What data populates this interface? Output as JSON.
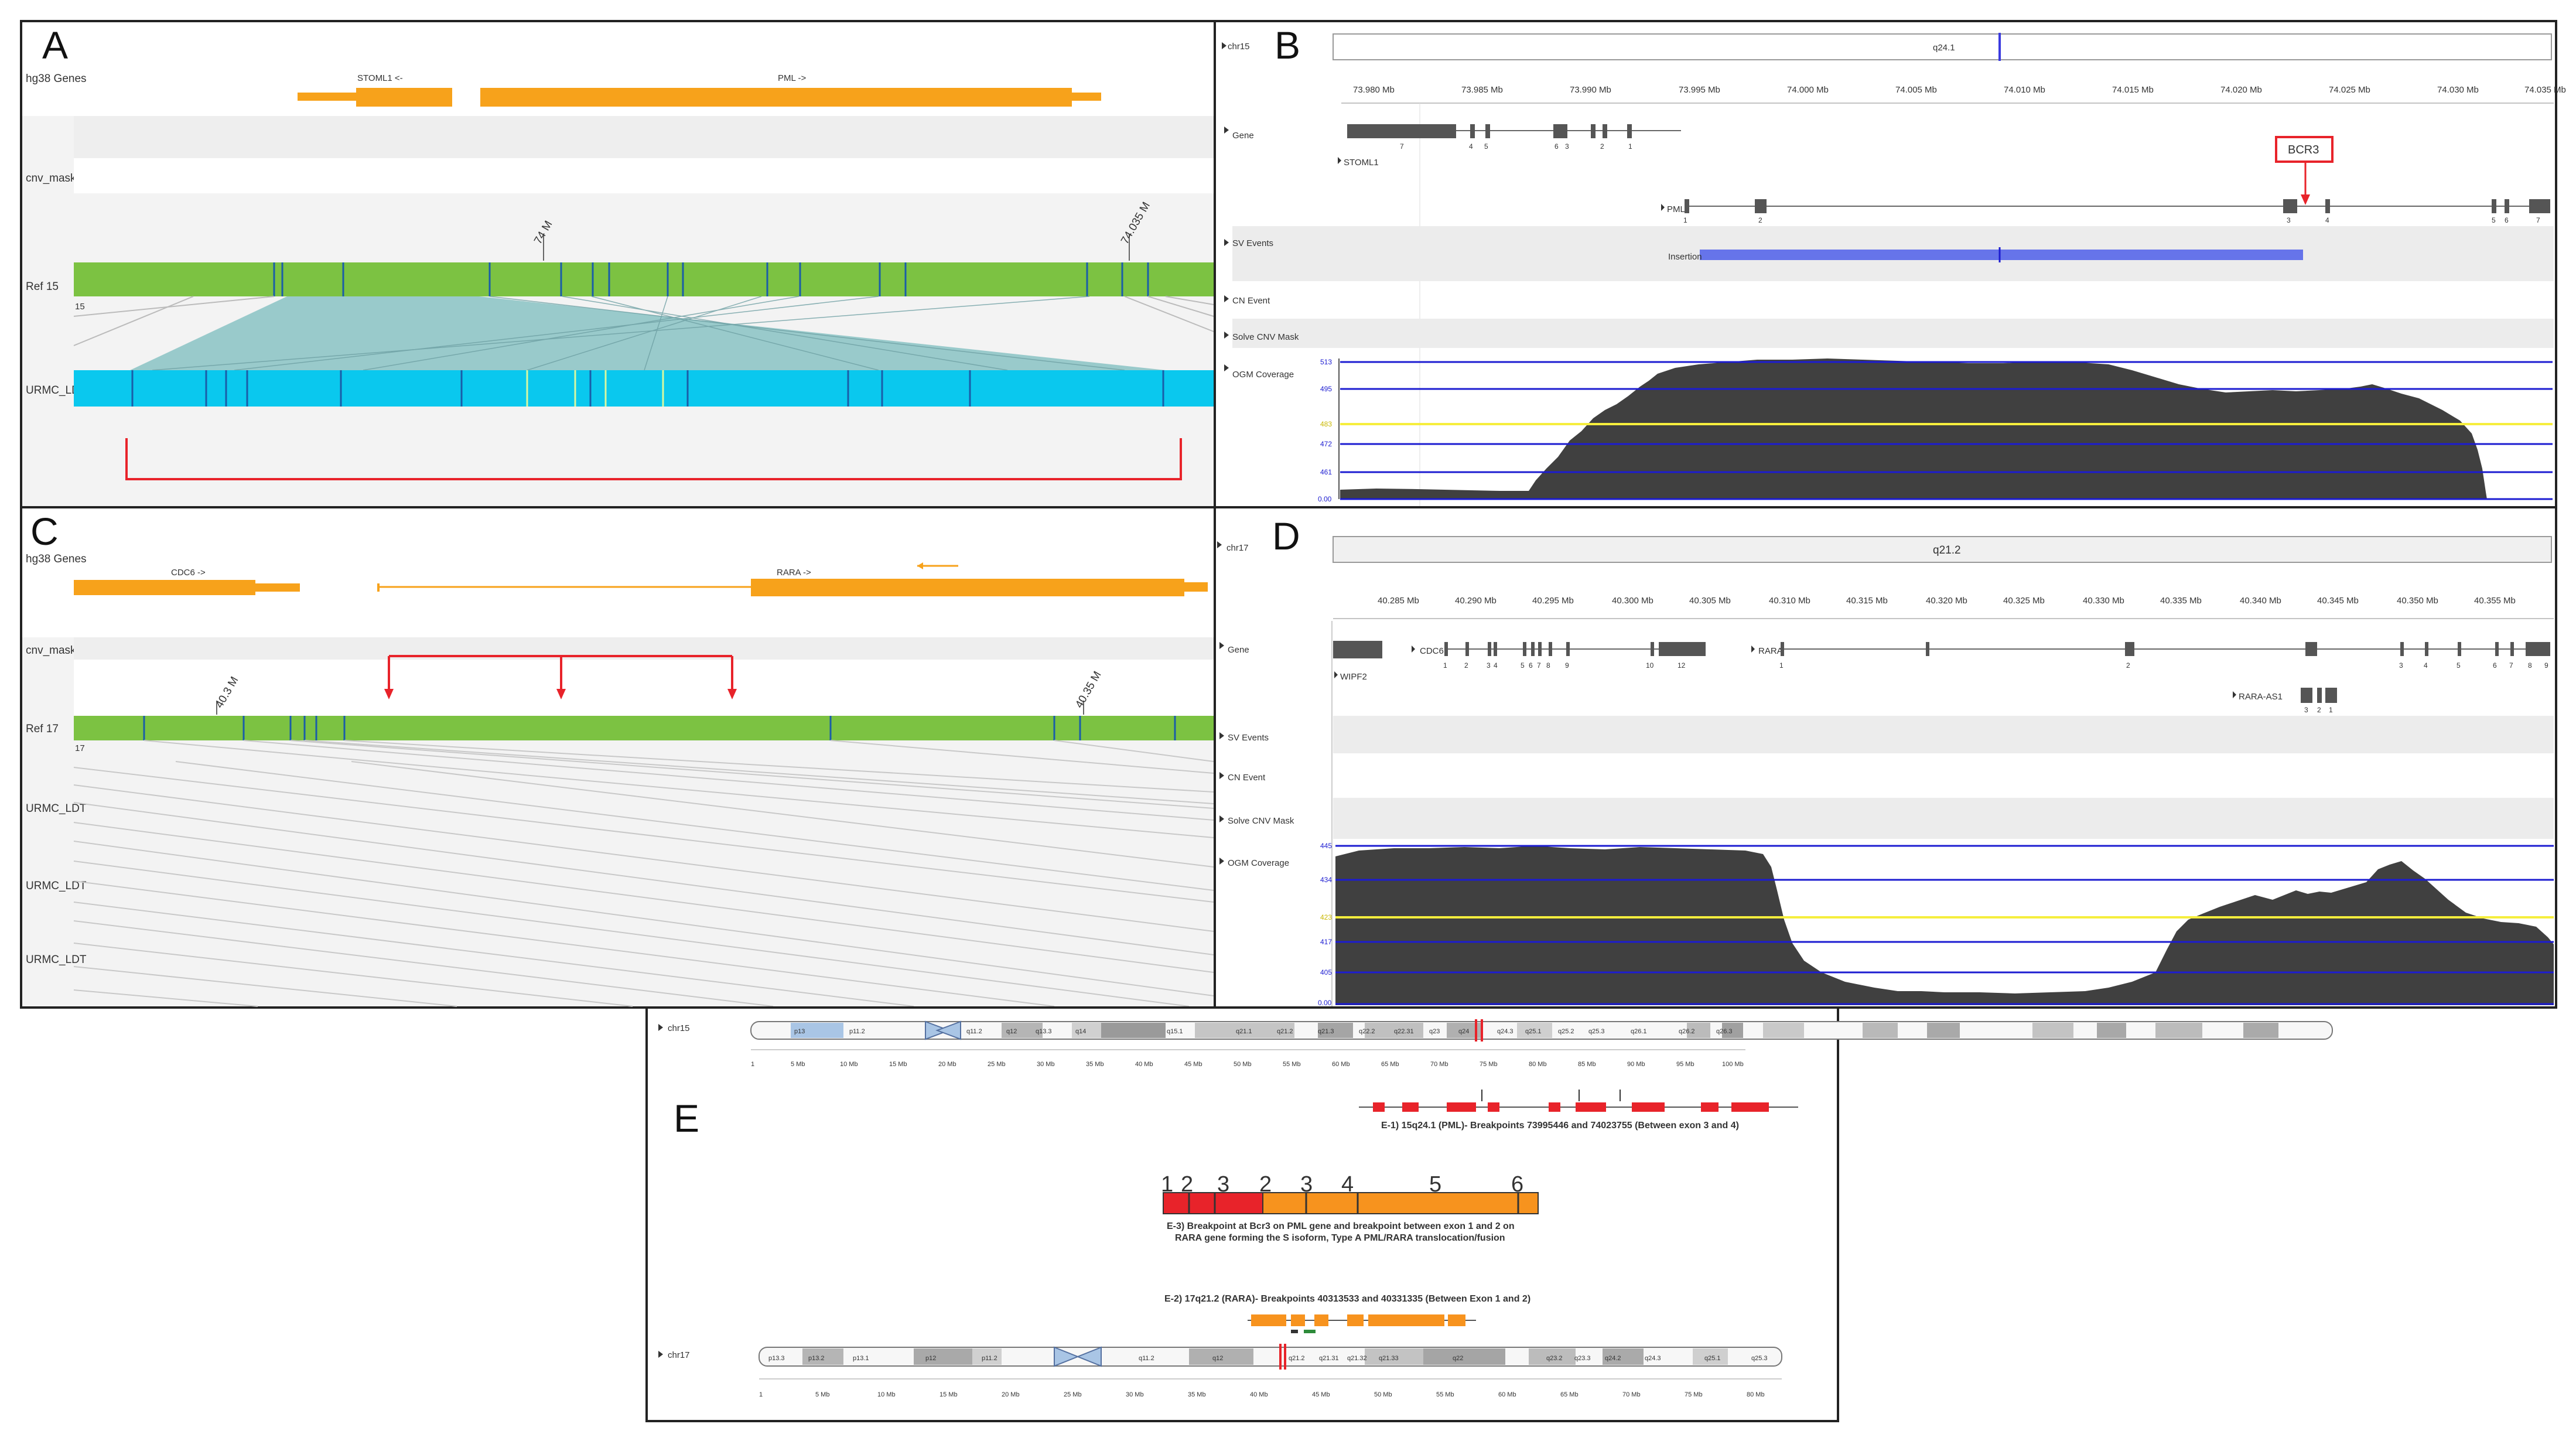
{
  "panels": {
    "A": {
      "letter": "A",
      "tracks": [
        "hg38 Genes",
        "cnv_maskb",
        "Ref 15",
        "URMC_LDT"
      ],
      "genes": [
        "STOML1 <-",
        "PML ->"
      ],
      "ticks": [
        "74 M",
        "74.035 M"
      ],
      "ref_number": "15"
    },
    "B": {
      "letter": "B",
      "chrom": "chr15",
      "band": "q24.1",
      "ruler": [
        "73.980 Mb",
        "73.985 Mb",
        "73.990 Mb",
        "73.995 Mb",
        "74.000 Mb",
        "74.005 Mb",
        "74.010 Mb",
        "74.015 Mb",
        "74.020 Mb",
        "74.025 Mb",
        "74.030 Mb",
        "74.035 Mb"
      ],
      "tracks": [
        "Gene",
        "SV Events",
        "CN Event",
        "Solve CNV Mask",
        "OGM Coverage"
      ],
      "genes": [
        "STOML1",
        "PML"
      ],
      "stoml1_exons": [
        "7",
        "4",
        "5",
        "6",
        "3",
        "2",
        "1"
      ],
      "pml_exons": [
        "1",
        "2",
        "3",
        "4",
        "5",
        "6",
        "7"
      ],
      "callout": "BCR3",
      "sv_label": "Insertion",
      "coverage_axis": [
        "513",
        "495",
        "483",
        "472",
        "461",
        "0.00"
      ]
    },
    "C": {
      "letter": "C",
      "tracks": [
        "hg38 Genes",
        "cnv_maskb",
        "Ref 17",
        "URMC_LDT",
        "URMC_LDT",
        "URMC_LDT"
      ],
      "genes": [
        "CDC6 ->",
        "RARA ->"
      ],
      "ticks": [
        "40.3 M",
        "40.35 M"
      ],
      "ref_number": "17"
    },
    "D": {
      "letter": "D",
      "chrom": "chr17",
      "band": "q21.2",
      "ruler": [
        "40.285 Mb",
        "40.290 Mb",
        "40.295 Mb",
        "40.300 Mb",
        "40.305 Mb",
        "40.310 Mb",
        "40.315 Mb",
        "40.320 Mb",
        "40.325 Mb",
        "40.330 Mb",
        "40.335 Mb",
        "40.340 Mb",
        "40.345 Mb",
        "40.350 Mb",
        "40.355 Mb"
      ],
      "tracks": [
        "Gene",
        "SV Events",
        "CN Event",
        "Solve CNV Mask",
        "OGM Coverage"
      ],
      "genes": [
        "CDC6",
        "RARA",
        "WIPF2",
        "RARA-AS1"
      ],
      "cdc6_exons": [
        "1",
        "2",
        "3",
        "4",
        "5",
        "6",
        "7",
        "8",
        "9",
        "10",
        "12"
      ],
      "rara_exons": [
        "1",
        "2",
        "3",
        "4",
        "5",
        "6",
        "7",
        "8",
        "9"
      ],
      "rara_as1_exons": [
        "3",
        "2",
        "1"
      ],
      "coverage_axis": [
        "445",
        "434",
        "423",
        "417",
        "405",
        "0.00"
      ]
    },
    "E": {
      "letter": "E",
      "chr15": {
        "name": "chr15",
        "bands": [
          "p13",
          "p11.2",
          "q11.2",
          "q12",
          "q13.3",
          "q14",
          "q15.1",
          "q21.1",
          "q21.2",
          "q21.3",
          "q22.2",
          "q22.31",
          "q23",
          "q24",
          "q24.3",
          "q25.1",
          "q25.2",
          "q25.3",
          "q26.1",
          "q26.2",
          "q26.3"
        ],
        "scale": [
          "1",
          "5 Mb",
          "10 Mb",
          "15 Mb",
          "20 Mb",
          "25 Mb",
          "30 Mb",
          "35 Mb",
          "40 Mb",
          "45 Mb",
          "50 Mb",
          "55 Mb",
          "60 Mb",
          "65 Mb",
          "70 Mb",
          "75 Mb",
          "80 Mb",
          "85 Mb",
          "90 Mb",
          "95 Mb",
          "100 Mb"
        ]
      },
      "chr17": {
        "name": "chr17",
        "bands": [
          "p13.3",
          "p13.2",
          "p13.1",
          "p12",
          "p11.2",
          "q11.2",
          "q12",
          "q21.2",
          "q21.31",
          "q21.32",
          "q21.33",
          "q22",
          "q23.2",
          "q23.3",
          "q24.2",
          "q24.3",
          "q25.1",
          "q25.3"
        ],
        "scale": [
          "1",
          "5 Mb",
          "10 Mb",
          "15 Mb",
          "20 Mb",
          "25 Mb",
          "30 Mb",
          "35 Mb",
          "40 Mb",
          "45 Mb",
          "50 Mb",
          "55 Mb",
          "60 Mb",
          "65 Mb",
          "70 Mb",
          "75 Mb",
          "80 Mb"
        ]
      },
      "caption1": "E-1) 15q24.1 (PML)- Breakpoints 73995446 and 74023755 (Between exon 3 and 4)",
      "fusion_left_exons": [
        "1",
        "2",
        "3"
      ],
      "fusion_right_exons": [
        "2",
        "3",
        "4",
        "5",
        "6"
      ],
      "caption3_line1": "E-3) Breakpoint at Bcr3 on PML gene and breakpoint between exon 1 and 2 on",
      "caption3_line2": "RARA gene forming the S isoform, Type A PML/RARA translocation/fusion",
      "caption2": "E-2) 17q21.2 (RARA)- Breakpoints 40313533 and 40331335 (Between Exon 1 and 2)"
    }
  },
  "colors": {
    "ref": "#7cc242",
    "query": "#0ac8ee",
    "gene": "#f7a21b",
    "alignment": "#8fc5c6",
    "red": "#e8232a",
    "coverage": "#404040",
    "sv": "#6674ea",
    "threshold_blue": "#1c1cd1",
    "threshold_yellow": "#f6ee3d"
  }
}
